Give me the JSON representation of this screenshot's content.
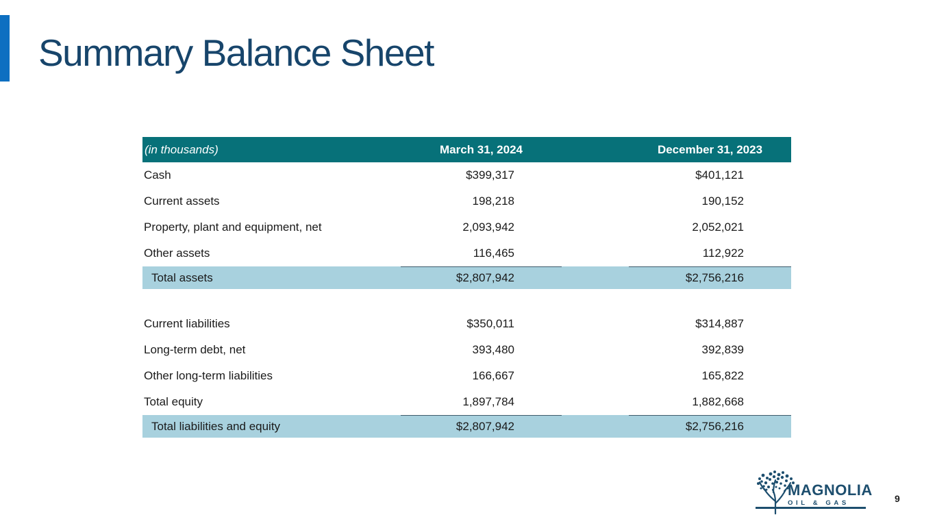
{
  "slide": {
    "title": "Summary Balance Sheet",
    "page_number": "9"
  },
  "colors": {
    "accent_bar": "#0d6fc1",
    "title": "#17456b",
    "header_bg": "#077179",
    "highlight_row": "#a8d1de",
    "total_rule": "#3d5a6b",
    "logo": "#1d4e6e"
  },
  "table": {
    "unit_note": "(in thousands)",
    "columns": [
      "March 31, 2024",
      "December 31, 2023"
    ],
    "sections": [
      {
        "rows": [
          {
            "label": "Cash",
            "values": [
              "$399,317",
              "$401,121"
            ]
          },
          {
            "label": "Current assets",
            "values": [
              "198,218",
              "190,152"
            ]
          },
          {
            "label": "Property, plant and equipment, net",
            "values": [
              "2,093,942",
              "2,052,021"
            ]
          },
          {
            "label": "Other assets",
            "values": [
              "116,465",
              "112,922"
            ]
          }
        ],
        "total": {
          "label": "Total assets",
          "values": [
            "$2,807,942",
            "$2,756,216"
          ]
        }
      },
      {
        "rows": [
          {
            "label": "Current liabilities",
            "values": [
              "$350,011",
              "$314,887"
            ]
          },
          {
            "label": "Long-term debt, net",
            "values": [
              "393,480",
              "392,839"
            ]
          },
          {
            "label": "Other long-term liabilities",
            "values": [
              "166,667",
              "165,822"
            ]
          },
          {
            "label": "Total equity",
            "values": [
              "1,897,784",
              "1,882,668"
            ]
          }
        ],
        "total": {
          "label": "Total liabilities and equity",
          "values": [
            "$2,807,942",
            "$2,756,216"
          ]
        }
      }
    ]
  },
  "logo": {
    "name": "MAGNOLIA",
    "subtitle": "OIL & GAS",
    "icon": "magnolia-tree-icon"
  }
}
